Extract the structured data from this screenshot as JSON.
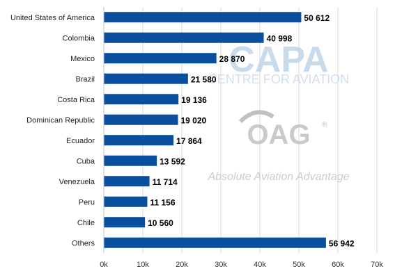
{
  "chart_data": {
    "type": "bar",
    "orientation": "horizontal",
    "categories": [
      "United States of America",
      "Colombia",
      "Mexico",
      "Brazil",
      "Costa Rica",
      "Dominican Republic",
      "Ecuador",
      "Cuba",
      "Venezuela",
      "Peru",
      "Chile",
      "Others"
    ],
    "values": [
      50612,
      40998,
      28870,
      21580,
      19136,
      19020,
      17864,
      13592,
      11714,
      11156,
      10560,
      56942
    ],
    "value_labels": [
      "50 612",
      "40 998",
      "28 870",
      "21 580",
      "19 136",
      "19 020",
      "17 864",
      "13 592",
      "11 714",
      "11 156",
      "10 560",
      "56 942"
    ],
    "xlim": [
      0,
      70000
    ],
    "x_ticks": [
      0,
      10000,
      20000,
      30000,
      40000,
      50000,
      60000,
      70000
    ],
    "x_tick_labels": [
      "0k",
      "10k",
      "20k",
      "30k",
      "40k",
      "50k",
      "60k",
      "70k"
    ],
    "grid": "vertical",
    "bar_color": "#0a4f9e"
  },
  "watermarks": {
    "capa_logo": "CAPA",
    "capa_sub": "CENTRE FOR AVIATION",
    "oag_logo": "OAG",
    "oag_registered": "®",
    "oag_sub": "Absolute Aviation Advantage"
  }
}
